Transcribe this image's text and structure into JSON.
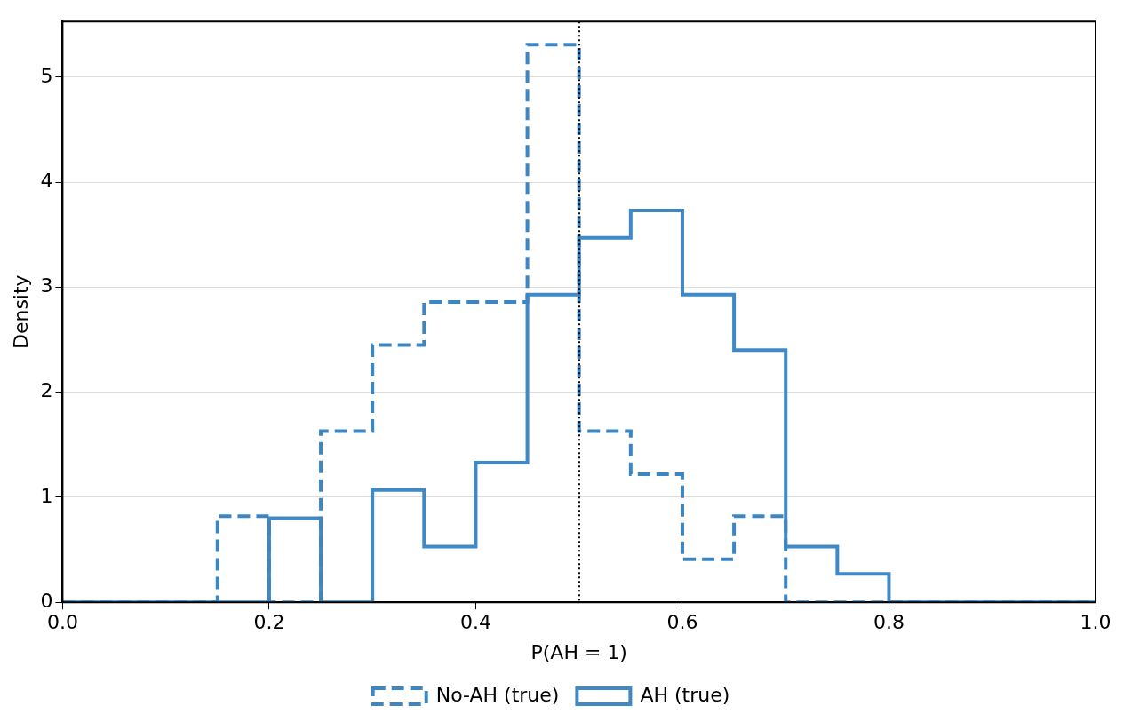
{
  "chart_data": {
    "type": "histogram",
    "xlabel": "P(AH = 1)",
    "ylabel": "Density",
    "bins": [
      0,
      0.05,
      0.1,
      0.15,
      0.2,
      0.25,
      0.3,
      0.35,
      0.4,
      0.45,
      0.5,
      0.55,
      0.6,
      0.65,
      0.7,
      0.75,
      0.8,
      0.85,
      0.9,
      0.95,
      1.0
    ],
    "series": [
      {
        "name": "No-AH (true)",
        "color": "#3c86c4",
        "line_style": "dashed",
        "values": [
          0,
          0,
          0,
          0.82,
          0,
          1.63,
          2.45,
          2.86,
          2.86,
          5.31,
          1.63,
          1.22,
          0.41,
          0.82,
          0,
          0,
          0,
          0,
          0,
          0
        ]
      },
      {
        "name": "AH (true)",
        "color": "#3f89c6",
        "line_style": "solid",
        "values": [
          0,
          0,
          0,
          0,
          0.8,
          0,
          1.07,
          0.53,
          1.33,
          2.93,
          3.47,
          3.73,
          2.93,
          2.4,
          0.53,
          0.27,
          0,
          0,
          0,
          0
        ]
      }
    ],
    "xlim": [
      0,
      1
    ],
    "xticks": [
      {
        "value": 0,
        "label": "0.0"
      },
      {
        "value": 0.2,
        "label": "0.2"
      },
      {
        "value": 0.4,
        "label": "0.4"
      },
      {
        "value": 0.6,
        "label": "0.6"
      },
      {
        "value": 0.8,
        "label": "0.8"
      },
      {
        "value": 1,
        "label": "1.0"
      }
    ],
    "ylim": [
      0,
      5.53
    ],
    "yticks": [
      0,
      1,
      2,
      3,
      4,
      5
    ],
    "ref_lines": [
      {
        "axis": "x",
        "value": 0.5,
        "color": "#000000",
        "line_style": "dotted"
      }
    ],
    "grid": "y",
    "legend": "bottom"
  }
}
